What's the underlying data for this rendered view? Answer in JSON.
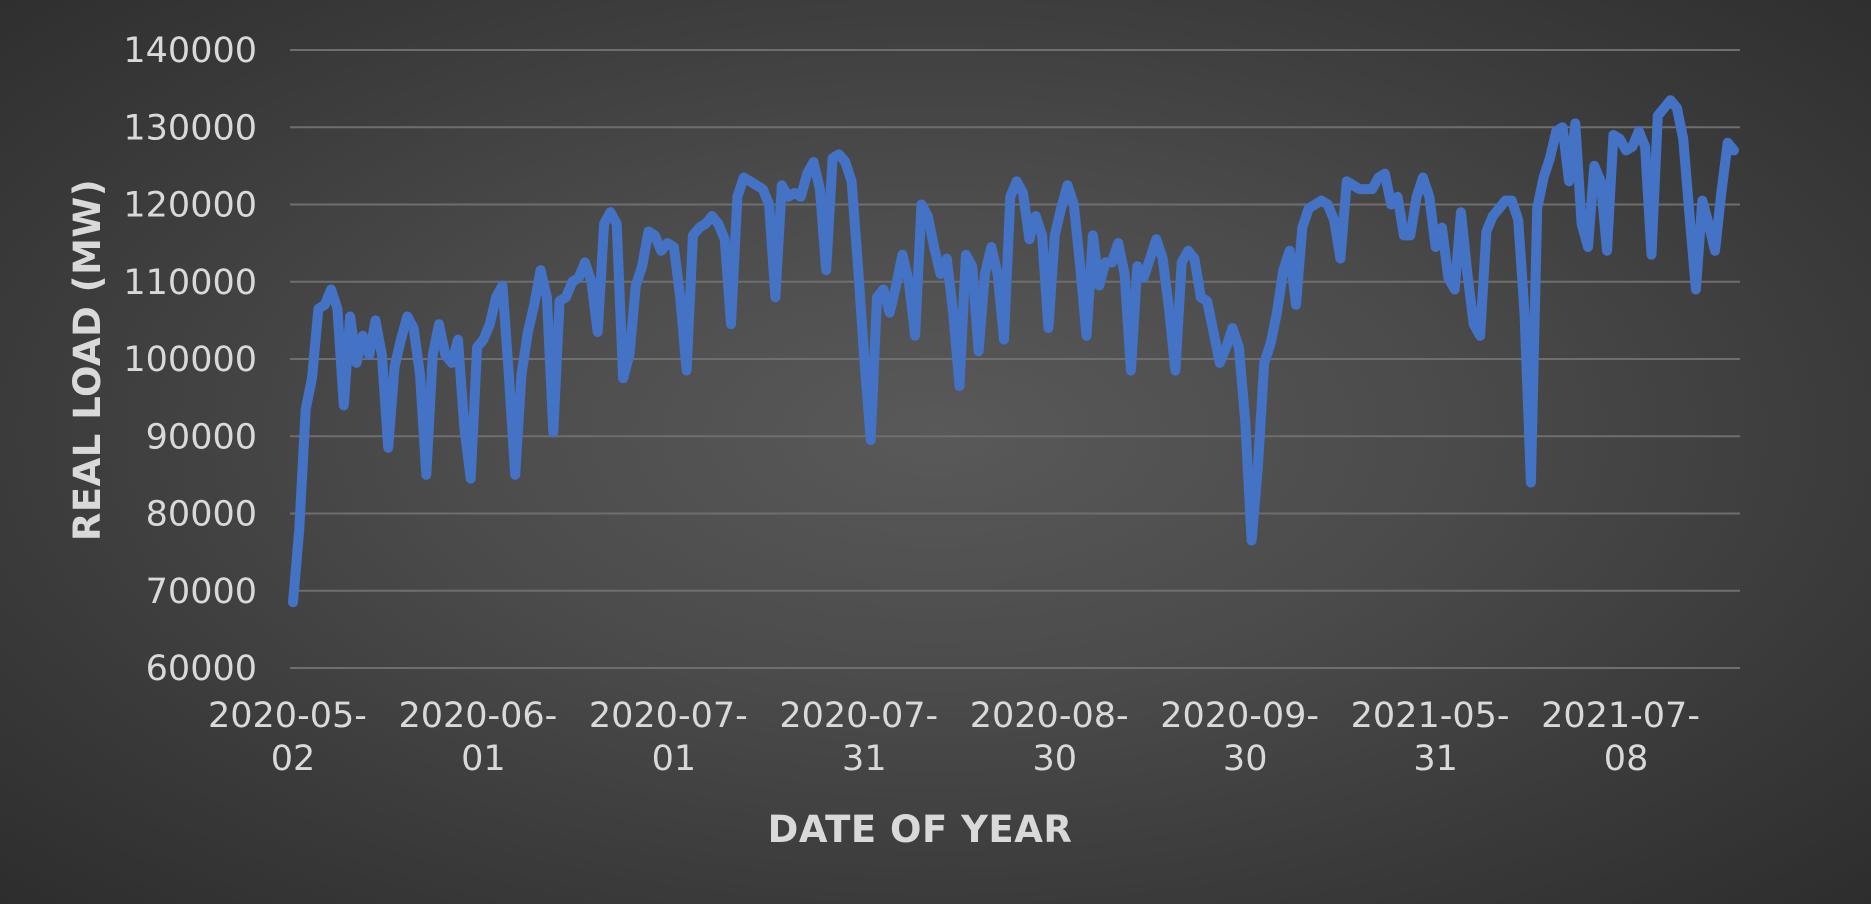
{
  "chart_data": {
    "type": "line",
    "title": "",
    "xlabel": "DATE OF YEAR",
    "ylabel": "REAL LOAD (MW)",
    "ylim": [
      60000,
      140000
    ],
    "yticks": [
      60000,
      70000,
      80000,
      90000,
      100000,
      110000,
      120000,
      130000,
      140000
    ],
    "grid": true,
    "legend": "none",
    "x_tick_labels": [
      {
        "index": 0,
        "line1": "2020-05-",
        "line2": "02"
      },
      {
        "index": 30,
        "line1": "2020-06-",
        "line2": "01"
      },
      {
        "index": 60,
        "line1": "2020-07-",
        "line2": "01"
      },
      {
        "index": 90,
        "line1": "2020-07-",
        "line2": "31"
      },
      {
        "index": 120,
        "line1": "2020-08-",
        "line2": "30"
      },
      {
        "index": 150,
        "line1": "2020-09-",
        "line2": "30"
      },
      {
        "index": 180,
        "line1": "2021-05-",
        "line2": "31"
      },
      {
        "index": 210,
        "line1": "2021-07-",
        "line2": "08"
      }
    ],
    "colors": {
      "series": "#4472c4",
      "text": "#d9d9d9",
      "grid": "#6e6e6e"
    },
    "series": [
      {
        "values": [
          68500,
          78000,
          93500,
          97500,
          106500,
          107000,
          109000,
          106500,
          94000,
          105500,
          99500,
          103000,
          100500,
          105000,
          100500,
          88500,
          99000,
          102500,
          105500,
          104000,
          98000,
          85000,
          100500,
          104500,
          100500,
          99500,
          102500,
          91000,
          84500,
          101500,
          102500,
          104500,
          108000,
          109500,
          98000,
          85000,
          98000,
          103500,
          107000,
          111500,
          108000,
          90500,
          107500,
          108000,
          110000,
          110500,
          112500,
          110000,
          103500,
          117500,
          119000,
          117500,
          97500,
          100500,
          109500,
          112000,
          116500,
          116000,
          114000,
          115000,
          114500,
          108000,
          98500,
          116000,
          117000,
          117500,
          118500,
          117500,
          115500,
          104500,
          121000,
          123500,
          123000,
          122500,
          122000,
          120000,
          108000,
          122500,
          121000,
          121500,
          121000,
          124000,
          125500,
          122000,
          111500,
          126000,
          126500,
          125500,
          123000,
          112000,
          100000,
          89500,
          108000,
          109000,
          106000,
          109500,
          113500,
          110000,
          103000,
          120000,
          118500,
          114500,
          111000,
          113000,
          106000,
          96500,
          113500,
          112000,
          101000,
          111000,
          114500,
          111000,
          102500,
          121000,
          123000,
          121500,
          115500,
          118500,
          116000,
          104000,
          116000,
          119500,
          122500,
          120000,
          112000,
          103000,
          116000,
          109500,
          112500,
          112500,
          115000,
          111000,
          98500,
          112000,
          110500,
          113000,
          115500,
          113000,
          106500,
          98500,
          112500,
          114000,
          113000,
          108000,
          107500,
          103500,
          99500,
          101500,
          104000,
          101500,
          92000,
          76500,
          86000,
          99500,
          102000,
          106000,
          111500,
          114000,
          107000,
          117000,
          119500,
          120000,
          120500,
          120000,
          118000,
          113000,
          123000,
          122500,
          122000,
          122000,
          122000,
          123500,
          124000,
          120000,
          121000,
          116000,
          116000,
          121000,
          123500,
          121000,
          114500,
          117000,
          110500,
          109000,
          119000,
          111000,
          104500,
          103000,
          116500,
          118500,
          119500,
          120500,
          120500,
          118000,
          106000,
          84000,
          119500,
          123500,
          126000,
          129500,
          130000,
          123000,
          130500,
          117500,
          114500,
          125000,
          123000,
          114000,
          129000,
          128500,
          127000,
          127500,
          129500,
          127500,
          113500,
          131500,
          132500,
          133500,
          132500,
          128500,
          118500,
          109000,
          120500,
          117500,
          114000,
          121500,
          128000,
          127000
        ]
      }
    ]
  }
}
